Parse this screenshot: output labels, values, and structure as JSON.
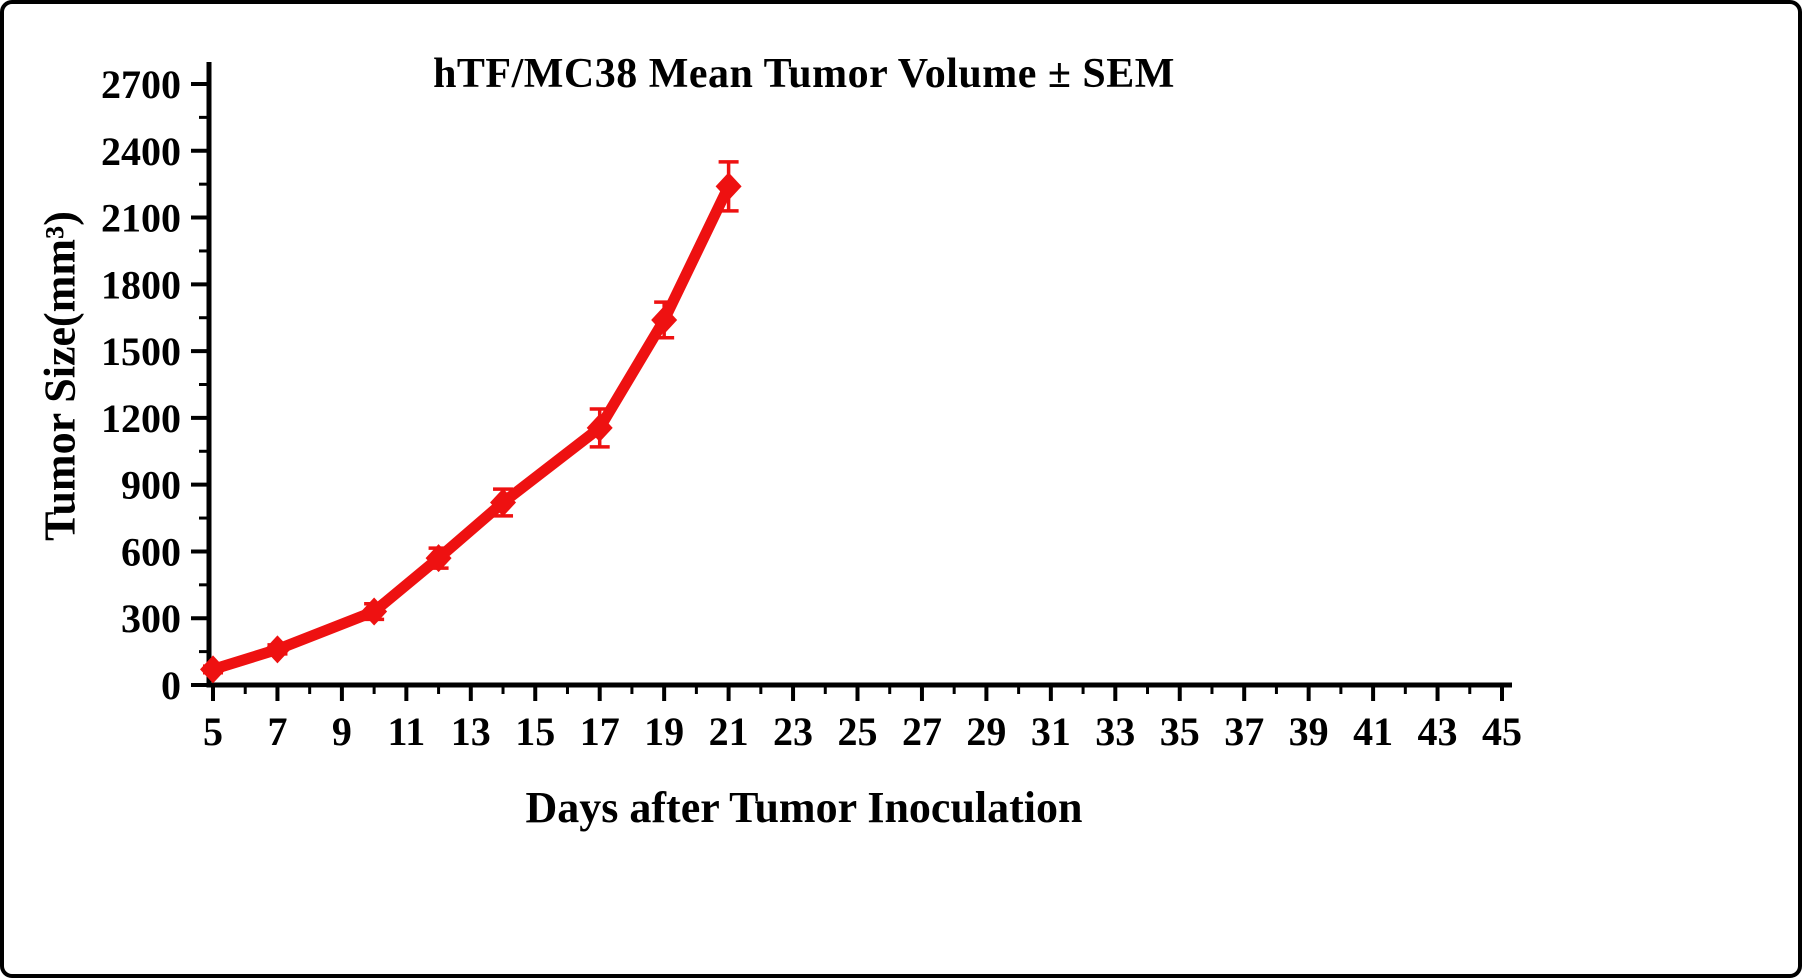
{
  "chart_data": {
    "type": "line",
    "title": "hTF/MC38 Mean Tumor Volume ± SEM",
    "xlabel": "Days after Tumor Inoculation",
    "ylabel": "Tumor Size(mm³)",
    "x": [
      5,
      7,
      10,
      12,
      14,
      17,
      19,
      21
    ],
    "series": [
      {
        "name": "hTF/MC38 mean tumor volume",
        "values": [
          70,
          160,
          330,
          570,
          820,
          1155,
          1640,
          2240
        ],
        "sem": [
          15,
          20,
          35,
          45,
          60,
          85,
          80,
          110
        ],
        "color": "#ee1111",
        "marker": "diamond"
      }
    ],
    "x_ticks": [
      5,
      7,
      9,
      11,
      13,
      15,
      17,
      19,
      21,
      23,
      25,
      27,
      29,
      31,
      33,
      35,
      37,
      39,
      41,
      43,
      45
    ],
    "y_ticks": [
      0,
      300,
      600,
      900,
      1200,
      1500,
      1800,
      2100,
      2400,
      2700
    ],
    "x_minor_step": 1,
    "y_minor_step": 150,
    "xlim": [
      5,
      45
    ],
    "ylim": [
      0,
      2700
    ],
    "grid": false,
    "legend": "none",
    "axis_color": "#000000"
  }
}
